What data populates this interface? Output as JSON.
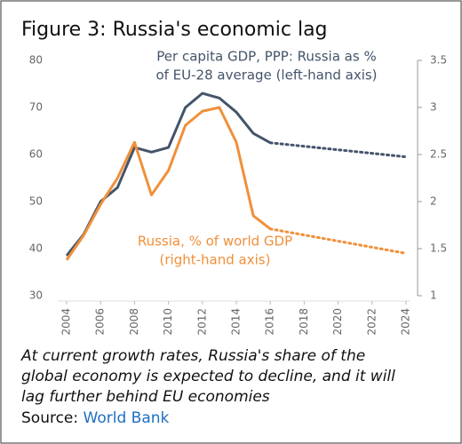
{
  "chart_data": {
    "type": "line",
    "title": "Figure 3: Russia's economic lag",
    "x": [
      2004,
      2005,
      2006,
      2007,
      2008,
      2009,
      2010,
      2011,
      2012,
      2013,
      2014,
      2015,
      2016,
      2024
    ],
    "xlim": [
      2004,
      2024
    ],
    "xticks": [
      2004,
      2006,
      2008,
      2010,
      2012,
      2014,
      2016,
      2018,
      2020,
      2022,
      2024
    ],
    "ylim": [
      30,
      80
    ],
    "yticks": [
      30,
      40,
      50,
      60,
      70,
      80
    ],
    "y2lim": [
      1,
      3.5
    ],
    "y2ticks": [
      1,
      1.5,
      2,
      2.5,
      3,
      3.5
    ],
    "dashed_from": 2016,
    "series": [
      {
        "name": [
          "Per capita GDP, PPP: Russia as %",
          "of EU-28 average (left-hand axis)"
        ],
        "color": "#44546a",
        "axis": "y",
        "values": [
          38.5,
          43,
          50,
          53,
          61.5,
          60.5,
          61.5,
          70,
          73,
          72,
          69,
          64.5,
          62.5,
          59.5
        ]
      },
      {
        "name": [
          "Russia, % of world GDP",
          "(right-hand axis)"
        ],
        "color": "#f0903a",
        "axis": "y2",
        "values": [
          1.38,
          1.64,
          1.97,
          2.25,
          2.63,
          2.07,
          2.33,
          2.81,
          2.96,
          3.0,
          2.63,
          1.85,
          1.71,
          1.45
        ]
      }
    ],
    "caption": [
      "At current growth rates, Russia's share of the",
      "global economy is expected to decline, and it will",
      "lag further behind EU economies"
    ],
    "source_label": "Source:",
    "source": "World Bank"
  }
}
